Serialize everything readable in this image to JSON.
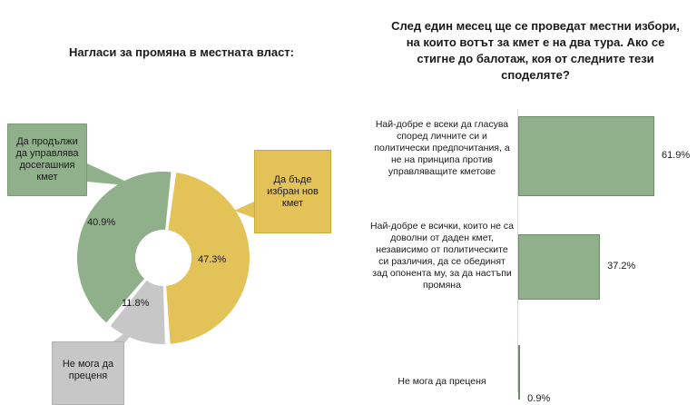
{
  "left_chart": {
    "title": "Нагласи за промяна в местната власт:",
    "chart_data": {
      "type": "pie",
      "title": "Нагласи за промяна в местната власт:",
      "slices": [
        {
          "label": "Да бъде избран нов кмет",
          "value": 47.3,
          "value_label": "47.3%",
          "color": "#e3c257"
        },
        {
          "label": "Не мога да преценя",
          "value": 11.8,
          "value_label": "11.8%",
          "color": "#c7c7c7"
        },
        {
          "label": "Да продължи да управлява досегашния кмет",
          "value": 40.9,
          "value_label": "40.9%",
          "color": "#8fb08a"
        }
      ]
    },
    "callouts": {
      "green": "Да продължи да управлява досегашния кмет",
      "yellow": "Да бъде избран нов кмет",
      "gray": "Не мога да преценя"
    }
  },
  "right_chart": {
    "title": "След един месец ще се проведат местни избори, на които вотът за кмет е на два тура. Ако се стигне до балотаж, коя от следните тези споделяте?",
    "chart_data": {
      "type": "bar",
      "orientation": "horizontal",
      "categories": [
        "Най-добре е всеки да гласува според личните си и политически предпочитания, а не на принципа против управляващите кметове",
        "Най-добре е всички, които не са доволни от даден кмет, независимо от политическите си различия, да се обединят зад опонента му, за да настъпи промяна",
        "Не мога да преценя"
      ],
      "values": [
        61.9,
        37.2,
        0.9
      ],
      "value_labels": [
        "61.9%",
        "37.2%",
        "0.9%"
      ],
      "color": "#8fb08a",
      "xlim": [
        0,
        100
      ]
    }
  }
}
